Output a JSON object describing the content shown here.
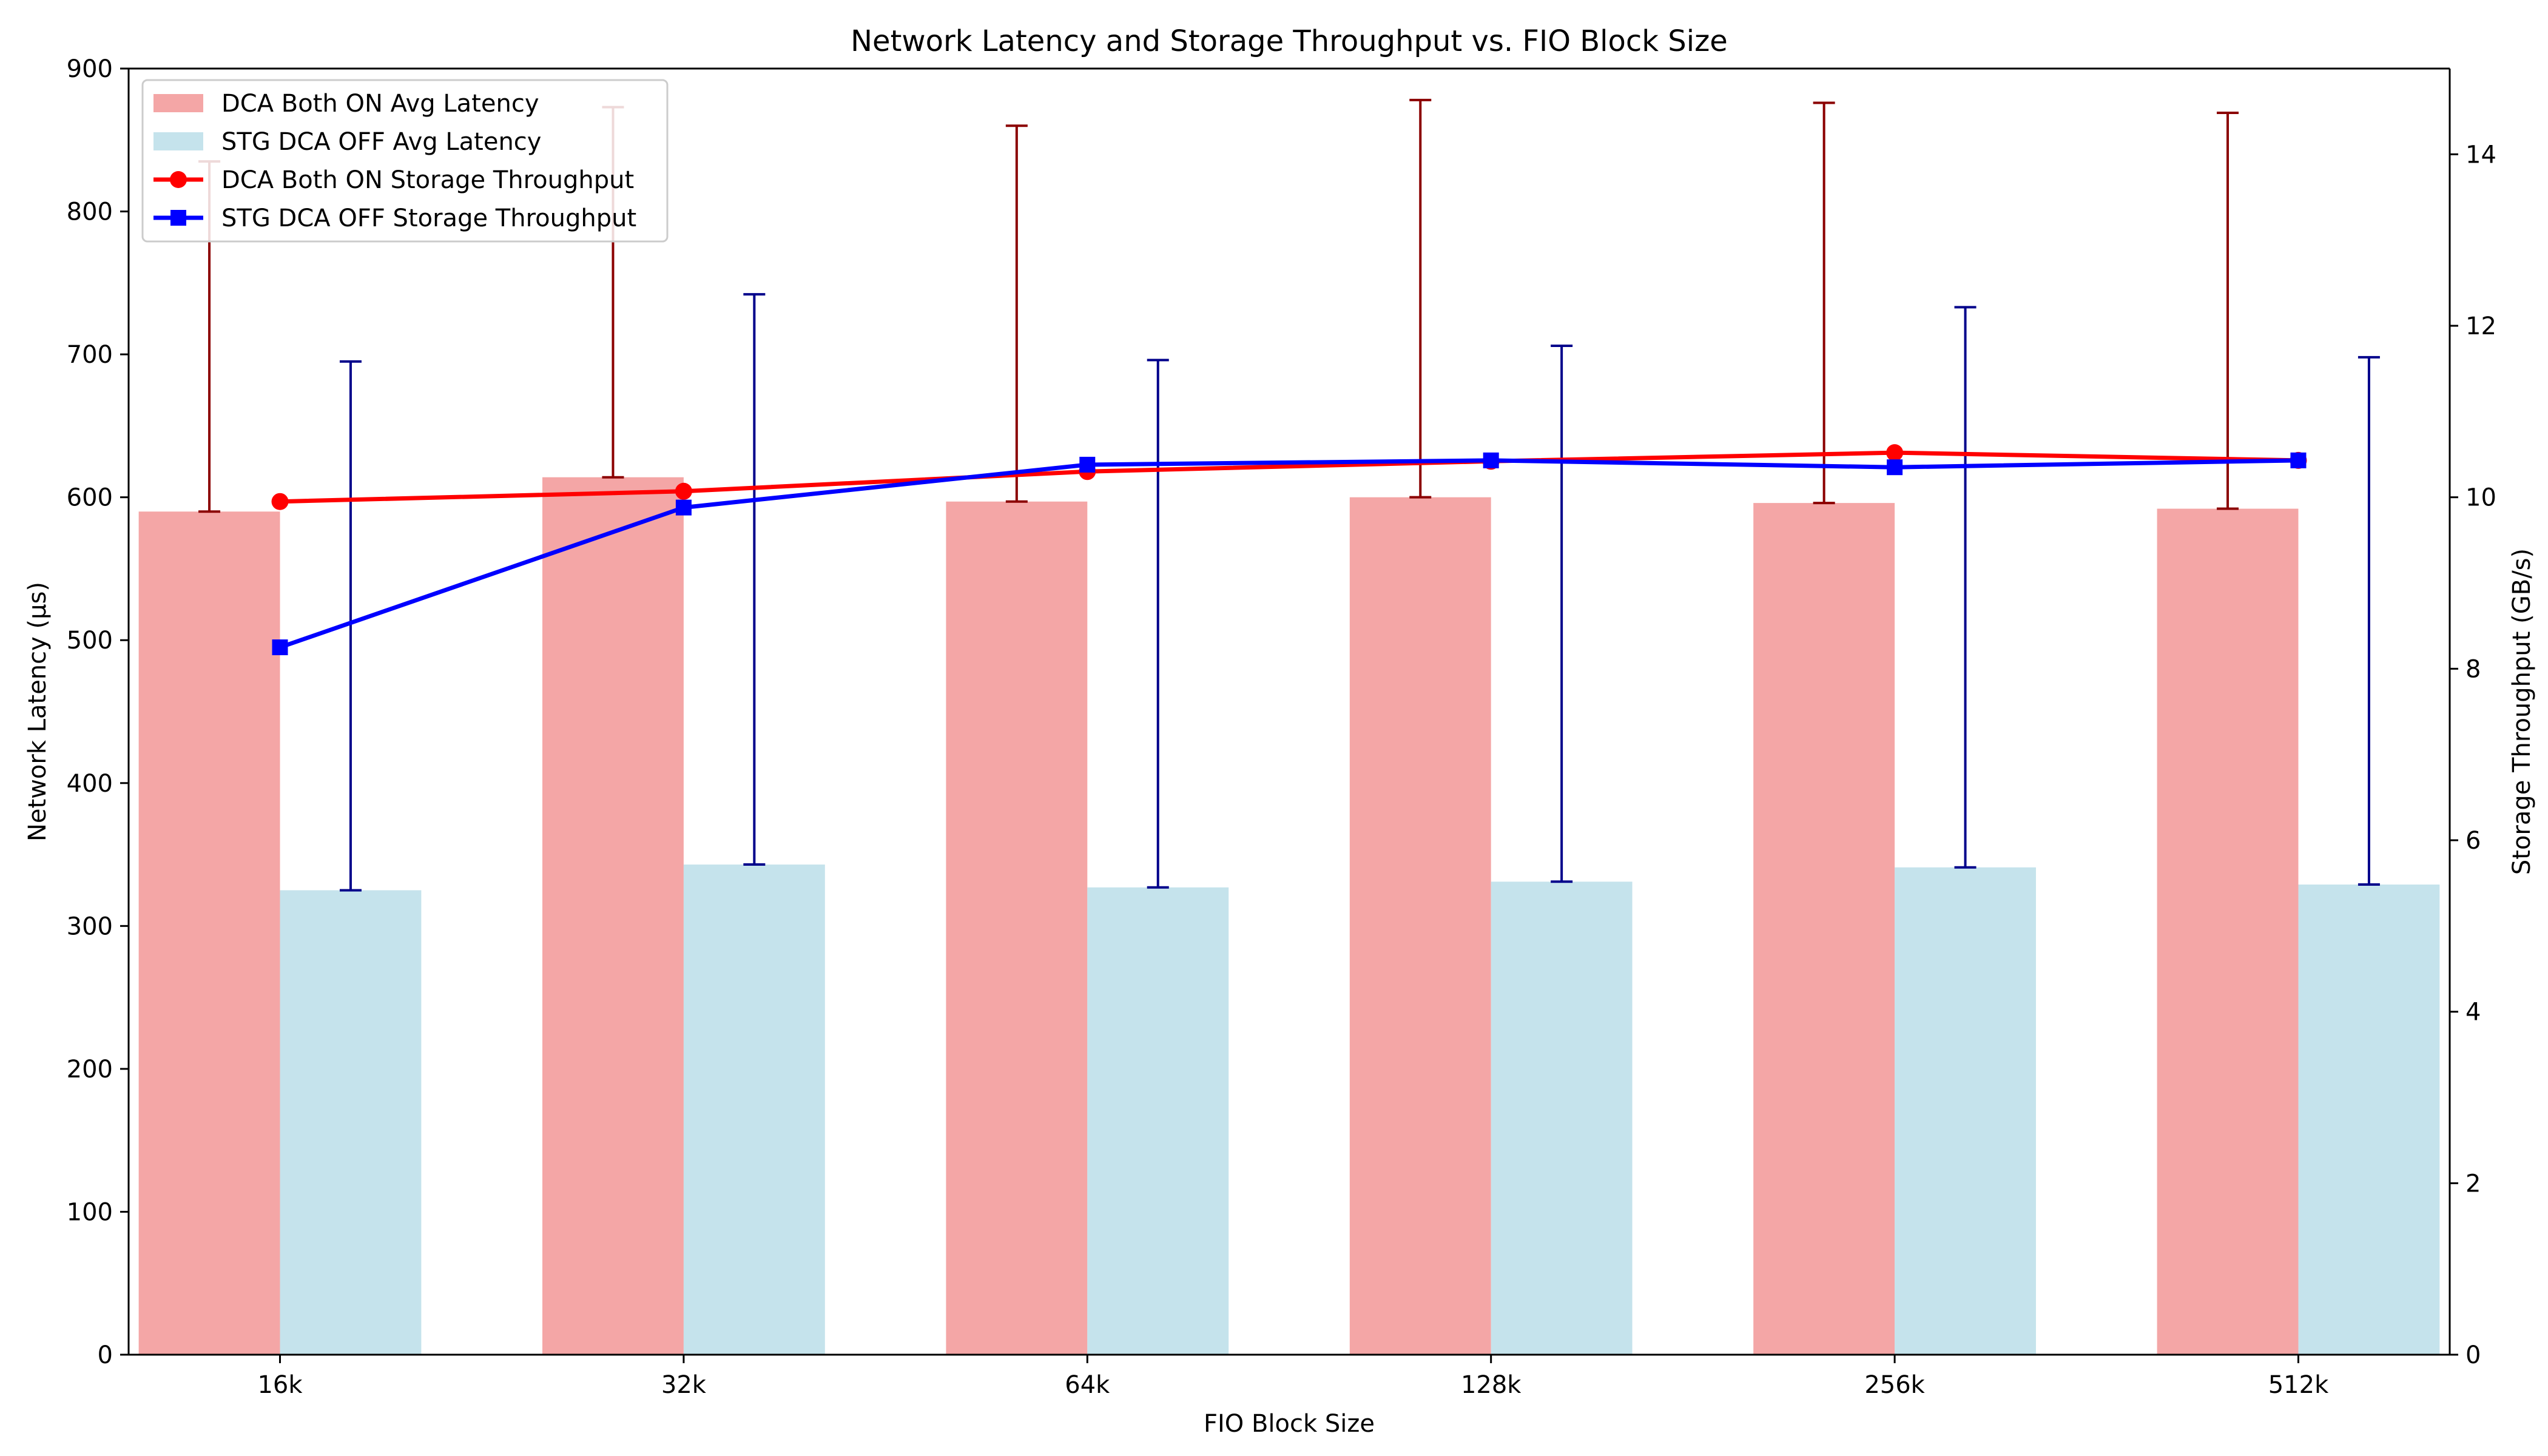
{
  "chart_data": {
    "type": "bar",
    "title": "Network Latency and Storage Throughput vs. FIO Block Size",
    "xlabel": "FIO Block Size",
    "ylabel": "Network Latency (µs)",
    "y2label": "Storage Throughput (GB/s)",
    "categories": [
      "16k",
      "32k",
      "64k",
      "128k",
      "256k",
      "512k"
    ],
    "ylim": [
      0,
      900
    ],
    "y2lim": [
      0,
      15
    ],
    "yticks": [
      0,
      100,
      200,
      300,
      400,
      500,
      600,
      700,
      800,
      900
    ],
    "y2ticks": [
      0,
      2,
      4,
      6,
      8,
      10,
      12,
      14
    ],
    "grid": false,
    "legend_position": "top-left",
    "bar_series": [
      {
        "name": "DCA Both ON Avg Latency",
        "values": [
          590,
          614,
          597,
          600,
          596,
          592
        ],
        "error_upper": [
          835,
          873,
          860,
          878,
          876,
          869
        ],
        "color": "#f4a6a6",
        "error_color": "#8b0000"
      },
      {
        "name": "STG DCA OFF Avg Latency",
        "values": [
          325,
          343,
          327,
          331,
          341,
          329
        ],
        "error_upper": [
          695,
          742,
          696,
          706,
          733,
          698
        ],
        "color": "#c5e3ec",
        "error_color": "#00008b"
      }
    ],
    "line_series": [
      {
        "name": "DCA Both ON Storage Throughput",
        "values": [
          9.95,
          10.07,
          10.3,
          10.42,
          10.52,
          10.43
        ],
        "color": "#ff0000",
        "marker": "circle"
      },
      {
        "name": "STG DCA OFF Storage Throughput",
        "values": [
          8.25,
          9.88,
          10.38,
          10.43,
          10.35,
          10.43
        ],
        "color": "#0000ff",
        "marker": "square"
      }
    ]
  }
}
